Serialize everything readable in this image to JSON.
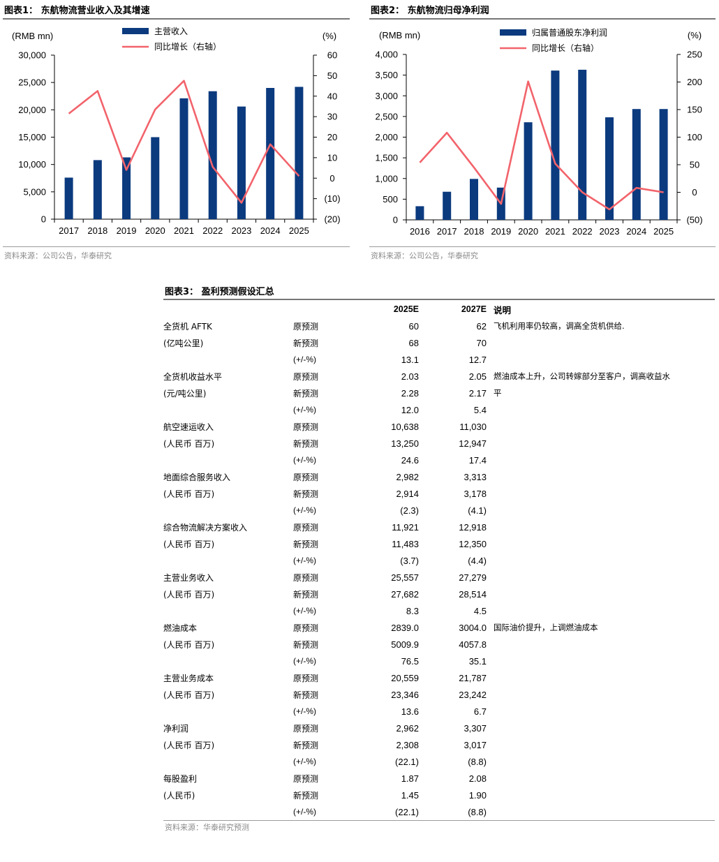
{
  "fig1": {
    "title": "图表1：  东航物流营业收入及其增速",
    "source": "资料来源：公司公告，华泰研究"
  },
  "fig2": {
    "title": "图表2：  东航物流归母净利润",
    "source": "资料来源：公司公告，华泰研究"
  },
  "fig3": {
    "title": "图表3：  盈利预测假设汇总",
    "source": "资料来源：华泰研究预测",
    "headers": [
      "",
      "",
      "2025E",
      "2027E",
      "说明"
    ],
    "rows": [
      [
        "全货机 AFTK",
        "原预测",
        "60",
        "62",
        "飞机利用率仍较高，调高全货机供给."
      ],
      [
        "(亿吨公里)",
        "新预测",
        "68",
        "70",
        ""
      ],
      [
        "",
        "(+/-%)",
        "13.1",
        "12.7",
        ""
      ],
      [
        "全货机收益水平",
        "原预测",
        "2.03",
        "2.05",
        "燃油成本上升，公司转嫁部分至客户，调高收益水"
      ],
      [
        "(元/吨公里)",
        "新预测",
        "2.28",
        "2.17",
        "平"
      ],
      [
        "",
        "(+/-%)",
        "12.0",
        "5.4",
        ""
      ],
      [
        "航空速运收入",
        "原预测",
        "10,638",
        "11,030",
        ""
      ],
      [
        "(人民币  百万)",
        "新预测",
        "13,250",
        "12,947",
        ""
      ],
      [
        "",
        "(+/-%)",
        "24.6",
        "17.4",
        ""
      ],
      [
        "地面综合服务收入",
        "原预测",
        "2,982",
        "3,313",
        ""
      ],
      [
        "(人民币  百万)",
        "新预测",
        "2,914",
        "3,178",
        ""
      ],
      [
        "",
        "(+/-%)",
        "(2.3)",
        "(4.1)",
        ""
      ],
      [
        "综合物流解决方案收入",
        "原预测",
        "11,921",
        "12,918",
        ""
      ],
      [
        "(人民币  百万)",
        "新预测",
        "11,483",
        "12,350",
        ""
      ],
      [
        "",
        "(+/-%)",
        "(3.7)",
        "(4.4)",
        ""
      ],
      [
        "主营业务收入",
        "原预测",
        "25,557",
        "27,279",
        ""
      ],
      [
        "(人民币  百万)",
        "新预测",
        "27,682",
        "28,514",
        ""
      ],
      [
        "",
        "(+/-%)",
        "8.3",
        "4.5",
        ""
      ],
      [
        "燃油成本",
        "原预测",
        "2839.0",
        "3004.0",
        "国际油价提升，上调燃油成本"
      ],
      [
        "(人民币  百万)",
        "新预测",
        "5009.9",
        "4057.8",
        ""
      ],
      [
        "",
        "(+/-%)",
        "76.5",
        "35.1",
        ""
      ],
      [
        "主营业务成本",
        "原预测",
        "20,559",
        "21,787",
        ""
      ],
      [
        "(人民币  百万)",
        "新预测",
        "23,346",
        "23,242",
        ""
      ],
      [
        "",
        "(+/-%)",
        "13.6",
        "6.7",
        ""
      ],
      [
        "净利润",
        "原预测",
        "2,962",
        "3,307",
        ""
      ],
      [
        "(人民币  百万)",
        "新预测",
        "2,308",
        "3,017",
        ""
      ],
      [
        "",
        "(+/-%)",
        "(22.1)",
        "(8.8)",
        ""
      ],
      [
        "每股盈利",
        "原预测",
        "1.87",
        "2.08",
        ""
      ],
      [
        "(人民币)",
        "新预测",
        "1.45",
        "1.90",
        ""
      ],
      [
        "",
        "(+/-%)",
        "(22.1)",
        "(8.8)",
        ""
      ]
    ]
  },
  "colors": {
    "bar": "#0b3a7e",
    "line": "#f2636b",
    "axis": "#000000"
  },
  "chart_data": [
    {
      "type": "bar",
      "title": "东航物流营业收入及其增速",
      "categories": [
        "2017",
        "2018",
        "2019",
        "2020",
        "2021",
        "2022",
        "2023",
        "2024",
        "2025"
      ],
      "ylabel": "(RMB mn)",
      "y2label": "(%)",
      "ylim": [
        0,
        30000
      ],
      "yticks": [
        "0",
        "5,000",
        "10,000",
        "15,000",
        "20,000",
        "25,000",
        "30,000"
      ],
      "y2lim": [
        -20,
        60
      ],
      "y2ticks": [
        "(20)",
        "(10)",
        "0",
        "10",
        "20",
        "30",
        "40",
        "50",
        "60"
      ],
      "series": [
        {
          "name": "主营收入",
          "type": "bar",
          "axis": "left",
          "values": [
            7600,
            10800,
            11300,
            15000,
            22100,
            23400,
            20600,
            24000,
            24200
          ]
        },
        {
          "name": "同比增长（右轴）",
          "type": "line",
          "axis": "right",
          "values": [
            31.5,
            42.5,
            4,
            33.5,
            47.5,
            5.5,
            -12,
            16.5,
            1
          ]
        }
      ],
      "legend": "top-center"
    },
    {
      "type": "bar",
      "title": "东航物流归母净利润",
      "categories": [
        "2016",
        "2017",
        "2018",
        "2019",
        "2020",
        "2021",
        "2022",
        "2023",
        "2024",
        "2025"
      ],
      "ylabel": "(RMB mn)",
      "y2label": "(%)",
      "ylim": [
        0,
        4000
      ],
      "yticks": [
        "0",
        "500",
        "1,000",
        "1,500",
        "2,000",
        "2,500",
        "3,000",
        "3,500",
        "4,000"
      ],
      "y2lim": [
        -50,
        250
      ],
      "y2ticks": [
        "(50)",
        "0",
        "50",
        "100",
        "150",
        "200",
        "250"
      ],
      "series": [
        {
          "name": "归属普通股东净利润",
          "type": "bar",
          "axis": "left",
          "values": [
            330,
            680,
            990,
            780,
            2360,
            3610,
            3630,
            2480,
            2680,
            2680
          ]
        },
        {
          "name": "同比增长（右轴）",
          "type": "line",
          "axis": "right",
          "values": [
            54,
            108,
            45,
            -21,
            201,
            52,
            0,
            -31,
            8,
            0
          ]
        }
      ],
      "legend": "top-center"
    }
  ]
}
